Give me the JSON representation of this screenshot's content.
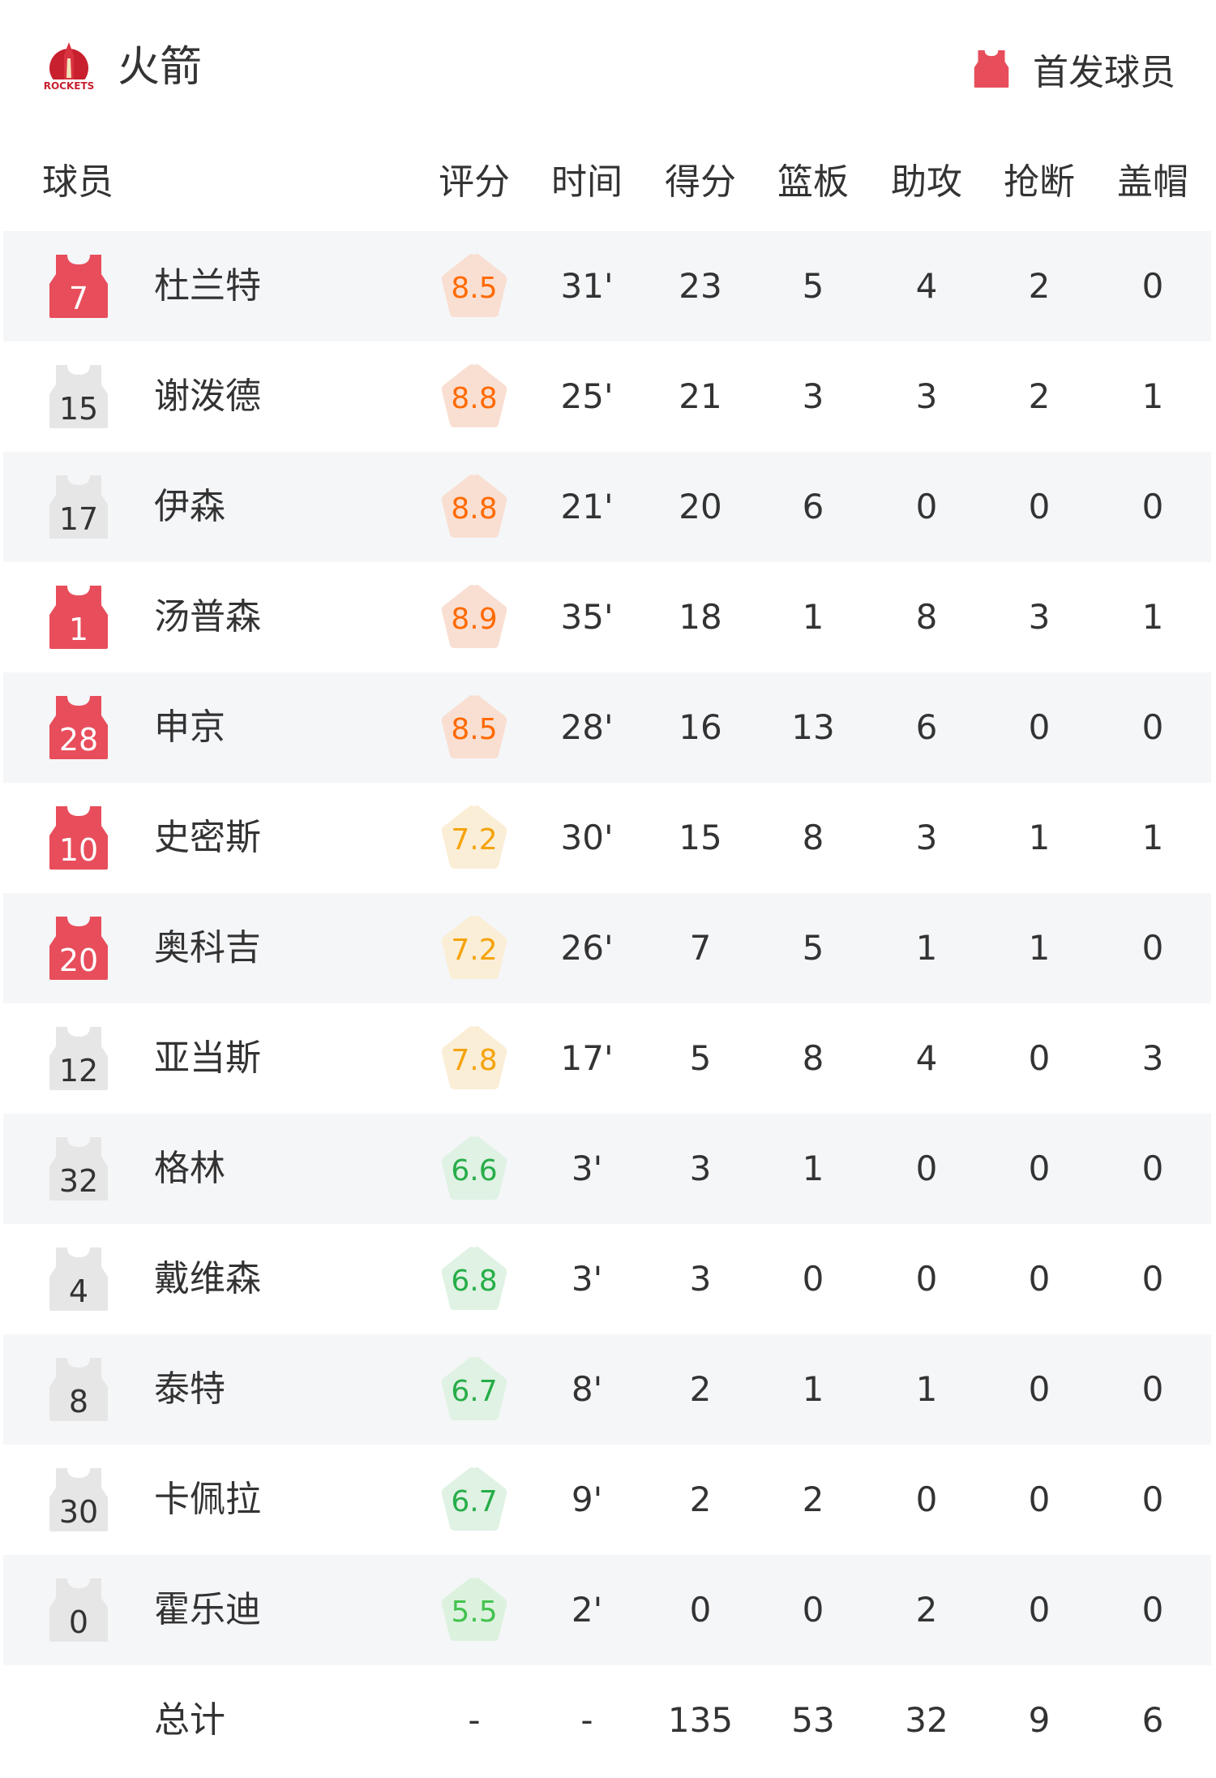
{
  "header": {
    "team_name": "火箭",
    "logo_text": "ROCKETS",
    "legend_label": "首发球员"
  },
  "colors": {
    "starter": "#e84d5b",
    "bench": "#e6e6e6",
    "row_alt": "#f5f6f8",
    "rating_high": {
      "text": "#ff6a00",
      "bg": "#f9dfd2"
    },
    "rating_mid": {
      "text": "#f5a30c",
      "bg": "#fbeed6"
    },
    "rating_low": {
      "text": "#27ad48",
      "bg": "#dff2e3"
    },
    "rating_lowest": {
      "text": "#44c24f",
      "bg": "#dcf2de"
    }
  },
  "columns": [
    "球员",
    "评分",
    "时间",
    "得分",
    "篮板",
    "助攻",
    "抢断",
    "盖帽"
  ],
  "players": [
    {
      "number": "7",
      "name": "杜兰特",
      "starter": true,
      "rating": "8.5",
      "time": "31'",
      "pts": "23",
      "reb": "5",
      "ast": "4",
      "stl": "2",
      "blk": "0"
    },
    {
      "number": "15",
      "name": "谢泼德",
      "starter": false,
      "rating": "8.8",
      "time": "25'",
      "pts": "21",
      "reb": "3",
      "ast": "3",
      "stl": "2",
      "blk": "1"
    },
    {
      "number": "17",
      "name": "伊森",
      "starter": false,
      "rating": "8.8",
      "time": "21'",
      "pts": "20",
      "reb": "6",
      "ast": "0",
      "stl": "0",
      "blk": "0"
    },
    {
      "number": "1",
      "name": "汤普森",
      "starter": true,
      "rating": "8.9",
      "time": "35'",
      "pts": "18",
      "reb": "1",
      "ast": "8",
      "stl": "3",
      "blk": "1"
    },
    {
      "number": "28",
      "name": "申京",
      "starter": true,
      "rating": "8.5",
      "time": "28'",
      "pts": "16",
      "reb": "13",
      "ast": "6",
      "stl": "0",
      "blk": "0"
    },
    {
      "number": "10",
      "name": "史密斯",
      "starter": true,
      "rating": "7.2",
      "time": "30'",
      "pts": "15",
      "reb": "8",
      "ast": "3",
      "stl": "1",
      "blk": "1"
    },
    {
      "number": "20",
      "name": "奥科吉",
      "starter": true,
      "rating": "7.2",
      "time": "26'",
      "pts": "7",
      "reb": "5",
      "ast": "1",
      "stl": "1",
      "blk": "0"
    },
    {
      "number": "12",
      "name": "亚当斯",
      "starter": false,
      "rating": "7.8",
      "time": "17'",
      "pts": "5",
      "reb": "8",
      "ast": "4",
      "stl": "0",
      "blk": "3"
    },
    {
      "number": "32",
      "name": "格林",
      "starter": false,
      "rating": "6.6",
      "time": "3'",
      "pts": "3",
      "reb": "1",
      "ast": "0",
      "stl": "0",
      "blk": "0"
    },
    {
      "number": "4",
      "name": "戴维森",
      "starter": false,
      "rating": "6.8",
      "time": "3'",
      "pts": "3",
      "reb": "0",
      "ast": "0",
      "stl": "0",
      "blk": "0"
    },
    {
      "number": "8",
      "name": "泰特",
      "starter": false,
      "rating": "6.7",
      "time": "8'",
      "pts": "2",
      "reb": "1",
      "ast": "1",
      "stl": "0",
      "blk": "0"
    },
    {
      "number": "30",
      "name": "卡佩拉",
      "starter": false,
      "rating": "6.7",
      "time": "9'",
      "pts": "2",
      "reb": "2",
      "ast": "0",
      "stl": "0",
      "blk": "0"
    },
    {
      "number": "0",
      "name": "霍乐迪",
      "starter": false,
      "rating": "5.5",
      "time": "2'",
      "pts": "0",
      "reb": "0",
      "ast": "2",
      "stl": "0",
      "blk": "0"
    }
  ],
  "totals": {
    "label": "总计",
    "rating": "-",
    "time": "-",
    "pts": "135",
    "reb": "53",
    "ast": "32",
    "stl": "9",
    "blk": "6"
  }
}
